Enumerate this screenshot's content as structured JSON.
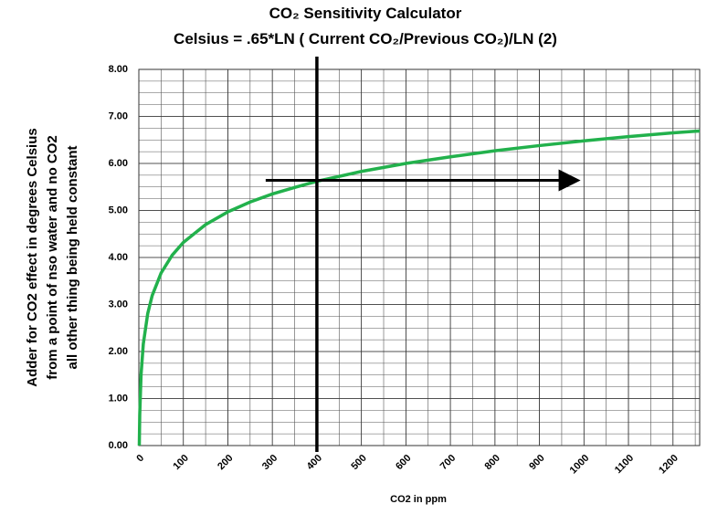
{
  "chart_data": {
    "type": "line",
    "title": "CO₂ Sensitivity Calculator",
    "subtitle": "Celsius = .65*LN ( Current CO₂/Previous CO₂)/LN (2)",
    "x_label": "CO2 in ppm",
    "y_label": [
      "Adder for CO2 effect in degrees Celsius",
      "from a point of nso water and no CO2",
      "all other thing being held constant"
    ],
    "x": [
      1,
      2,
      5,
      10,
      20,
      30,
      50,
      75,
      100,
      150,
      200,
      250,
      300,
      350,
      400,
      500,
      600,
      700,
      800,
      900,
      1000,
      1100,
      1200,
      1260
    ],
    "series": [
      {
        "color": "#22b14c",
        "values": [
          0,
          0.65,
          1.51,
          2.16,
          2.81,
          3.19,
          3.67,
          4.05,
          4.32,
          4.7,
          4.97,
          5.18,
          5.35,
          5.49,
          5.62,
          5.83,
          6.0,
          6.14,
          6.27,
          6.38,
          6.48,
          6.57,
          6.65,
          6.69
        ]
      }
    ],
    "xlim": [
      0,
      1260
    ],
    "ylim": [
      0,
      8
    ],
    "xticks": [
      0,
      100,
      200,
      300,
      400,
      500,
      600,
      700,
      800,
      900,
      1000,
      1100,
      1200
    ],
    "yticks": [
      {
        "value": 0,
        "label": "0.00"
      },
      {
        "value": 1,
        "label": "1.00"
      },
      {
        "value": 2,
        "label": "2.00"
      },
      {
        "value": 3,
        "label": "3.00"
      },
      {
        "value": 4,
        "label": "4.00"
      },
      {
        "value": 5,
        "label": "5.00"
      },
      {
        "value": 6,
        "label": "6.00"
      },
      {
        "value": 7,
        "label": "7.00"
      },
      {
        "value": 8,
        "label": "8.00"
      }
    ],
    "grid": true,
    "x_minor": 2,
    "y_minor": 4,
    "vline": 400,
    "arrow": {
      "x": [
        285,
        980
      ],
      "y": 5.64
    }
  }
}
